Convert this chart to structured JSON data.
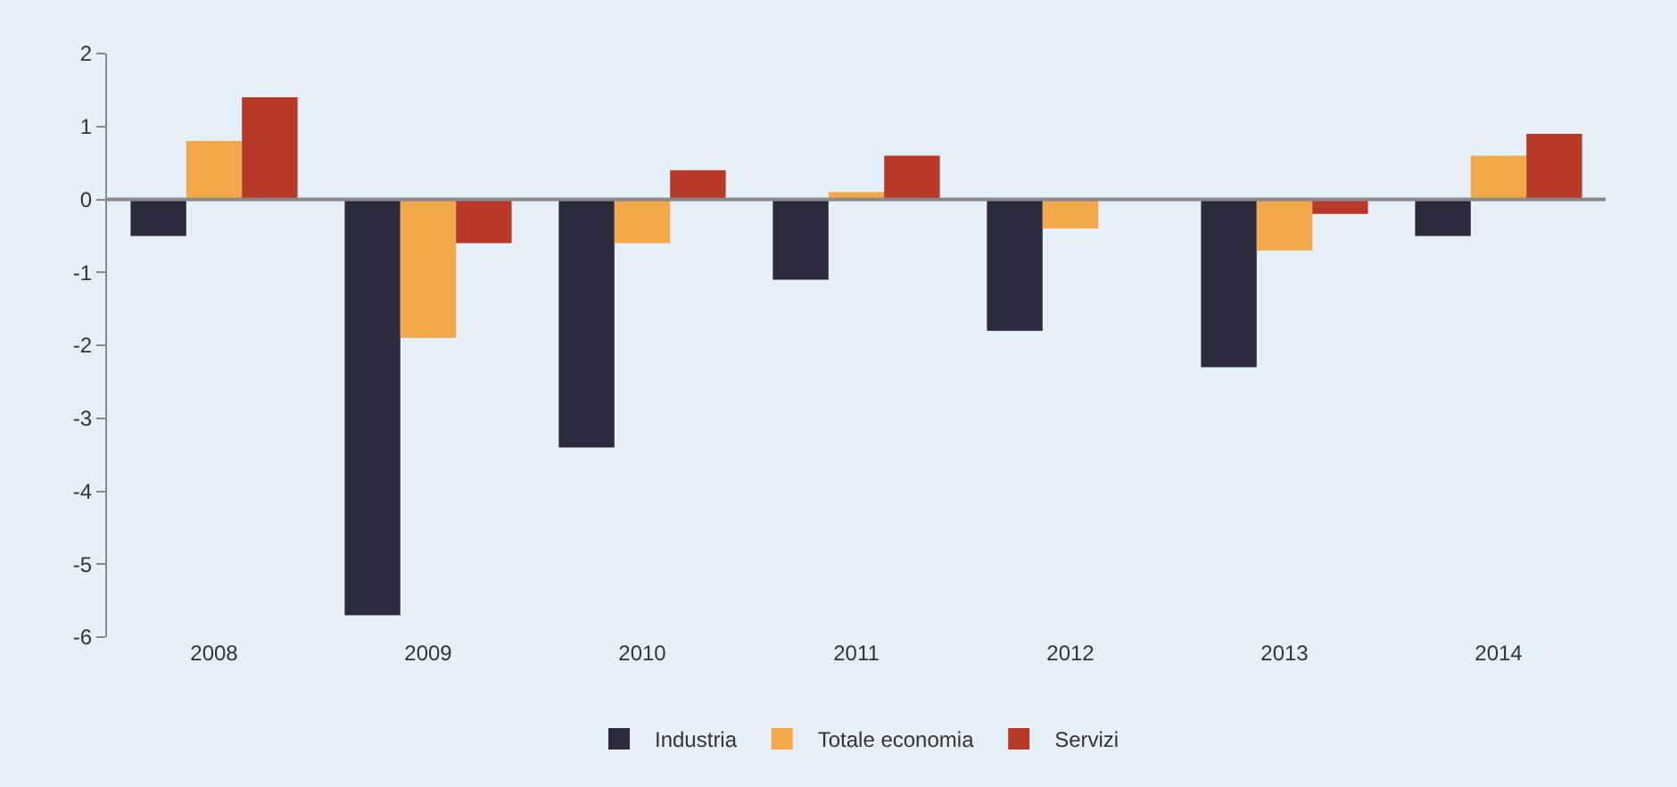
{
  "chart_data": {
    "type": "bar",
    "categories": [
      "2008",
      "2009",
      "2010",
      "2011",
      "2012",
      "2013",
      "2014"
    ],
    "series": [
      {
        "name": "Industria",
        "color": "#2b2a3c",
        "values": [
          -0.5,
          -5.7,
          -3.4,
          -1.1,
          -1.8,
          -2.3,
          -0.5
        ]
      },
      {
        "name": "Totale economia",
        "color": "#f2a848",
        "values": [
          0.8,
          -1.9,
          -0.6,
          0.1,
          -0.4,
          -0.7,
          0.6
        ]
      },
      {
        "name": "Servizi",
        "color": "#b8392a",
        "values": [
          1.4,
          -0.6,
          0.4,
          0.6,
          0,
          -0.2,
          0.9
        ]
      }
    ],
    "ylim": [
      -6,
      2
    ],
    "yticks": [
      -6,
      -5,
      -4,
      -3,
      -2,
      -1,
      0,
      1,
      2
    ],
    "legend": "bottom"
  }
}
